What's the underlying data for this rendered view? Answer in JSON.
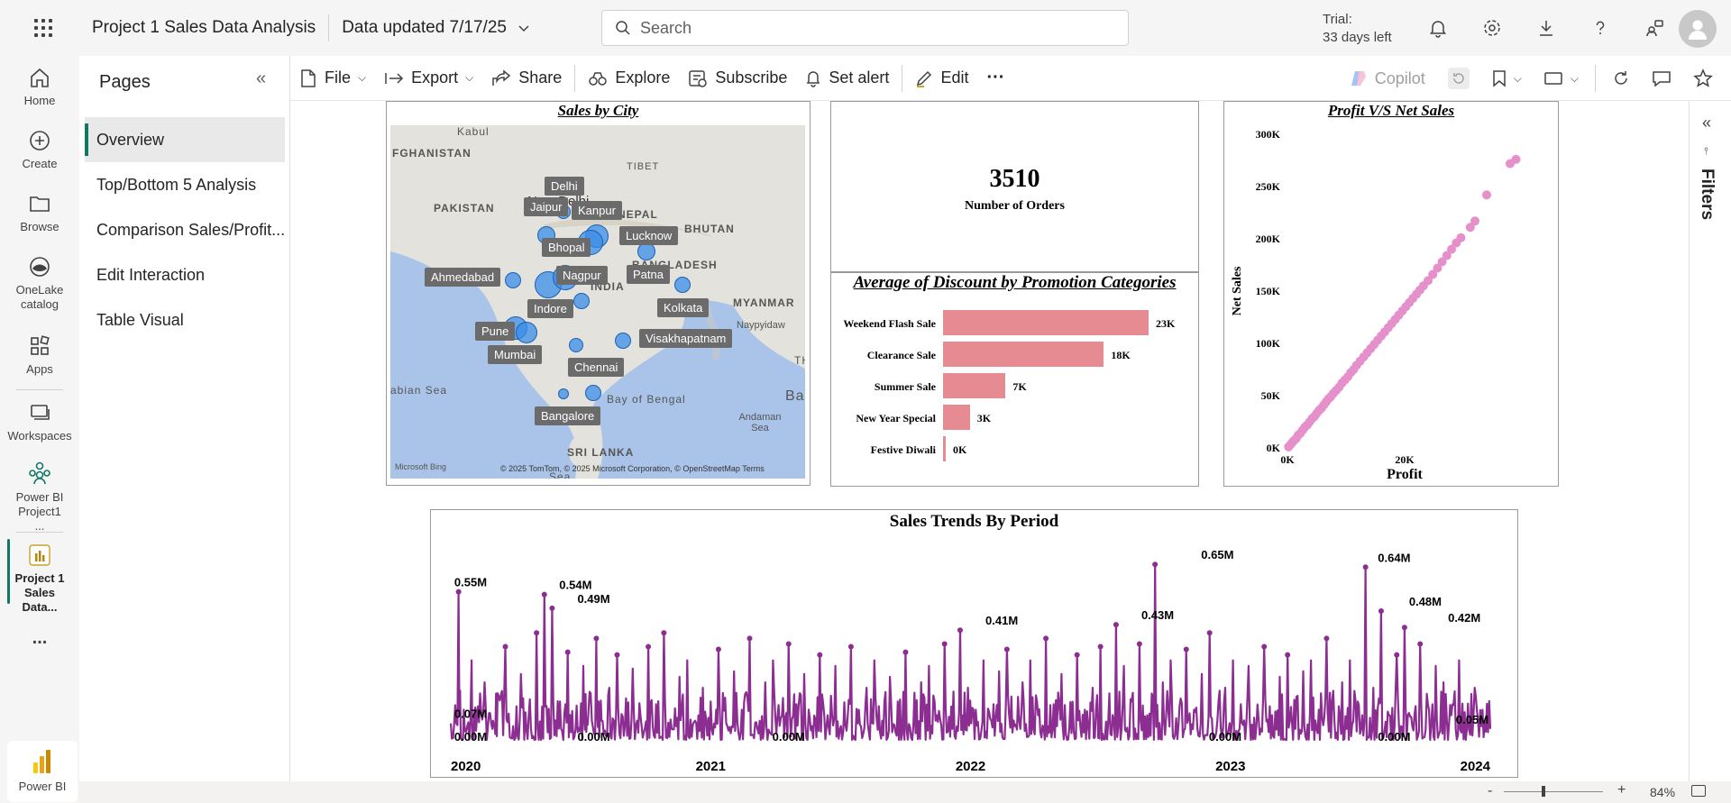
{
  "header": {
    "app_title": "Project 1 Sales Data Analysis",
    "data_updated": "Data updated 7/17/25",
    "search_placeholder": "Search",
    "trial_line1": "Trial:",
    "trial_line2": "33 days left"
  },
  "rail": {
    "items": [
      {
        "label": "Home",
        "icon": "home-icon"
      },
      {
        "label": "Create",
        "icon": "create-icon"
      },
      {
        "label": "Browse",
        "icon": "browse-icon"
      },
      {
        "label": "OneLake catalog",
        "icon": "onelake-icon"
      },
      {
        "label": "Apps",
        "icon": "apps-icon"
      },
      {
        "label": "Workspaces",
        "icon": "workspaces-icon"
      },
      {
        "label": "Power BI Project1 ...",
        "icon": "powerbi-workspace-icon"
      },
      {
        "label": "Project 1 Sales Data...",
        "icon": "report-icon"
      }
    ],
    "more": "...",
    "product": "Power BI"
  },
  "pages": {
    "title": "Pages",
    "items": [
      "Overview",
      "Top/Bottom 5 Analysis",
      "Comparison Sales/Profit...",
      "Edit Interaction",
      "Table Visual"
    ],
    "active_index": 0
  },
  "toolbar": {
    "file": "File",
    "export": "Export",
    "share": "Share",
    "explore": "Explore",
    "subscribe": "Subscribe",
    "set_alert": "Set alert",
    "edit": "Edit",
    "more": "···",
    "copilot": "Copilot"
  },
  "filters_label": "Filters",
  "zoom": "84%",
  "visuals": {
    "map": {
      "title": "Sales by City",
      "attribution": "© 2025 TomTom, © 2025 Microsoft Corporation, © OpenStreetMap  Terms",
      "bing": "Microsoft Bing",
      "geo_labels": [
        "Kabul",
        "FGHANISTAN",
        "PAKISTAN",
        "TIBET",
        "NEPAL",
        "BHUTAN",
        "BANGLADESH",
        "MYANMAR",
        "Naypyidaw",
        "abian Sea",
        "Bay of Bengal",
        "Andaman Sea",
        "SRI LANKA",
        "Bar",
        "TH",
        "New Delhi",
        "Sea",
        "INDIA"
      ],
      "cities": [
        "Delhi",
        "Jaipur",
        "Kanpur",
        "Lucknow",
        "Bhopal",
        "Patna",
        "Ahmedabad",
        "Nagpur",
        "Kolkata",
        "Indore",
        "Pune",
        "Mumbai",
        "Visakhapatnam",
        "Chennai",
        "Bangalore"
      ]
    },
    "kpi": {
      "value": "3510",
      "label": "Number of Orders"
    },
    "discount": {
      "title": "Average of Discount by Promotion Categories"
    },
    "scatter": {
      "title": "Profit V/S Net Sales"
    },
    "trend": {
      "title": "Sales Trends By Period"
    }
  },
  "chart_data": [
    {
      "type": "bar",
      "title": "Average of Discount by Promotion Categories",
      "categories": [
        "Weekend Flash Sale",
        "Clearance Sale",
        "Summer Sale",
        "New Year Special",
        "Festive Diwali"
      ],
      "values": [
        23,
        18,
        7,
        3,
        0
      ],
      "value_labels": [
        "23K",
        "18K",
        "7K",
        "3K",
        "0K"
      ],
      "orientation": "horizontal",
      "color": "#e68b92"
    },
    {
      "type": "scatter",
      "title": "Profit V/S Net Sales",
      "xlabel": "Profit",
      "ylabel": "Net Sales",
      "x_ticks": [
        "0K",
        "20K"
      ],
      "y_ticks": [
        "0K",
        "50K",
        "100K",
        "150K",
        "200K",
        "250K",
        "300K"
      ],
      "xlim": [
        0,
        40
      ],
      "ylim": [
        0,
        300
      ],
      "color": "#e58fcb",
      "points": [
        [
          0.2,
          1
        ],
        [
          0.5,
          3
        ],
        [
          0.8,
          5
        ],
        [
          1.1,
          7
        ],
        [
          1.5,
          9
        ],
        [
          1.8,
          12
        ],
        [
          2.2,
          14
        ],
        [
          2.6,
          17
        ],
        [
          3.0,
          20
        ],
        [
          3.4,
          22
        ],
        [
          3.8,
          25
        ],
        [
          4.2,
          28
        ],
        [
          4.6,
          30
        ],
        [
          5.0,
          33
        ],
        [
          5.4,
          36
        ],
        [
          5.8,
          38
        ],
        [
          6.2,
          41
        ],
        [
          6.6,
          44
        ],
        [
          7.0,
          47
        ],
        [
          7.4,
          49
        ],
        [
          7.8,
          52
        ],
        [
          8.3,
          55
        ],
        [
          8.8,
          58
        ],
        [
          9.3,
          62
        ],
        [
          9.8,
          65
        ],
        [
          10.3,
          68
        ],
        [
          10.8,
          72
        ],
        [
          11.3,
          75
        ],
        [
          11.8,
          79
        ],
        [
          12.4,
          83
        ],
        [
          13.0,
          87
        ],
        [
          13.6,
          91
        ],
        [
          14.2,
          95
        ],
        [
          14.8,
          99
        ],
        [
          15.4,
          103
        ],
        [
          16.0,
          107
        ],
        [
          16.6,
          111
        ],
        [
          17.2,
          115
        ],
        [
          17.8,
          119
        ],
        [
          18.4,
          123
        ],
        [
          19.0,
          127
        ],
        [
          19.6,
          131
        ],
        [
          20.2,
          135
        ],
        [
          20.8,
          139
        ],
        [
          21.4,
          143
        ],
        [
          22.0,
          147
        ],
        [
          22.6,
          151
        ],
        [
          23.2,
          155
        ],
        [
          24.0,
          160
        ],
        [
          24.8,
          166
        ],
        [
          25.6,
          172
        ],
        [
          26.4,
          178
        ],
        [
          27.2,
          184
        ],
        [
          28.0,
          190
        ],
        [
          28.8,
          196
        ],
        [
          29.6,
          201
        ],
        [
          31.2,
          211
        ],
        [
          32.0,
          217
        ],
        [
          34.0,
          242
        ],
        [
          38.0,
          272
        ],
        [
          39.0,
          276
        ]
      ]
    },
    {
      "type": "line",
      "title": "Sales Trends By Period",
      "x_ticks": [
        "2020",
        "2021",
        "2022",
        "2023",
        "2024"
      ],
      "xlim": [
        2020.0,
        2024.0
      ],
      "ylim": [
        0,
        0.7
      ],
      "unit": "M",
      "color": "#8b2d91",
      "x": [
        2020.0,
        2020.03,
        2020.05,
        2020.08,
        2020.1,
        2020.13,
        2020.16,
        2020.18,
        2020.21,
        2020.24,
        2020.27,
        2020.3,
        2020.33,
        2020.36,
        2020.39,
        2020.42,
        2020.45,
        2020.48,
        2020.51,
        2020.53,
        2020.56,
        2020.58,
        2020.61,
        2020.64,
        2020.67,
        2020.7,
        2020.73,
        2020.76,
        2020.79,
        2020.82,
        2020.85,
        2020.88,
        2020.91,
        2020.94,
        2020.97,
        2021.0,
        2021.03,
        2021.06,
        2021.09,
        2021.12,
        2021.15,
        2021.18,
        2021.21,
        2021.24,
        2021.27,
        2021.3,
        2021.33,
        2021.36,
        2021.39,
        2021.42,
        2021.45,
        2021.48,
        2021.51,
        2021.54,
        2021.57,
        2021.6,
        2021.63,
        2021.66,
        2021.69,
        2021.72,
        2021.75,
        2021.78,
        2021.81,
        2021.84,
        2021.87,
        2021.9,
        2021.93,
        2021.96,
        2021.99,
        2022.02,
        2022.05,
        2022.08,
        2022.11,
        2022.14,
        2022.17,
        2022.2,
        2022.23,
        2022.26,
        2022.29,
        2022.32,
        2022.35,
        2022.38,
        2022.41,
        2022.44,
        2022.47,
        2022.5,
        2022.53,
        2022.56,
        2022.59,
        2022.62,
        2022.65,
        2022.68,
        2022.71,
        2022.74,
        2022.77,
        2022.8,
        2022.83,
        2022.86,
        2022.89,
        2022.92,
        2022.95,
        2022.98,
        2023.01,
        2023.04,
        2023.07,
        2023.1,
        2023.13,
        2023.16,
        2023.19,
        2023.22,
        2023.25,
        2023.28,
        2023.31,
        2023.34,
        2023.37,
        2023.4,
        2023.43,
        2023.46,
        2023.49,
        2023.52,
        2023.55,
        2023.58,
        2023.61,
        2023.64,
        2023.67,
        2023.7,
        2023.73,
        2023.76,
        2023.79,
        2023.82,
        2023.85,
        2023.88,
        2023.91,
        2023.94,
        2023.97,
        2024.0
      ],
      "values": [
        0.07,
        0.55,
        0.12,
        0.3,
        0.08,
        0.22,
        0.05,
        0.18,
        0.35,
        0.06,
        0.25,
        0.1,
        0.4,
        0.54,
        0.49,
        0.15,
        0.33,
        0.05,
        0.28,
        0.12,
        0.38,
        0.08,
        0.2,
        0.32,
        0.06,
        0.27,
        0.1,
        0.35,
        0.14,
        0.4,
        0.05,
        0.24,
        0.3,
        0.08,
        0.2,
        0.15,
        0.34,
        0.07,
        0.26,
        0.12,
        0.38,
        0.05,
        0.22,
        0.3,
        0.09,
        0.36,
        0.14,
        0.25,
        0.06,
        0.32,
        0.1,
        0.28,
        0.04,
        0.35,
        0.12,
        0.2,
        0.3,
        0.08,
        0.24,
        0.15,
        0.33,
        0.06,
        0.22,
        0.28,
        0.1,
        0.36,
        0.05,
        0.41,
        0.2,
        0.12,
        0.3,
        0.08,
        0.26,
        0.34,
        0.06,
        0.22,
        0.3,
        0.1,
        0.38,
        0.14,
        0.25,
        0.05,
        0.32,
        0.12,
        0.2,
        0.35,
        0.08,
        0.43,
        0.28,
        0.15,
        0.36,
        0.1,
        0.65,
        0.22,
        0.3,
        0.06,
        0.34,
        0.12,
        0.25,
        0.4,
        0.08,
        0.2,
        0.3,
        0.14,
        0.28,
        0.06,
        0.35,
        0.1,
        0.24,
        0.32,
        0.05,
        0.26,
        0.3,
        0.12,
        0.38,
        0.08,
        0.22,
        0.3,
        0.15,
        0.64,
        0.2,
        0.48,
        0.1,
        0.32,
        0.42,
        0.06,
        0.36,
        0.14,
        0.28,
        0.22,
        0.1,
        0.3,
        0.05,
        0.2,
        0.12,
        0.05
      ],
      "data_labels": [
        {
          "x": 2020.0,
          "y": 0.55,
          "text": "0.55M"
        },
        {
          "x": 2020.48,
          "y": 0.54,
          "text": "0.54M"
        },
        {
          "x": 2020.55,
          "y": 0.49,
          "text": "0.49M"
        },
        {
          "x": 2022.12,
          "y": 0.41,
          "text": "0.41M"
        },
        {
          "x": 2022.72,
          "y": 0.43,
          "text": "0.43M"
        },
        {
          "x": 2022.95,
          "y": 0.65,
          "text": "0.65M"
        },
        {
          "x": 2023.63,
          "y": 0.64,
          "text": "0.64M"
        },
        {
          "x": 2023.75,
          "y": 0.48,
          "text": "0.48M"
        },
        {
          "x": 2023.9,
          "y": 0.42,
          "text": "0.42M"
        },
        {
          "x": 2020.0,
          "y": 0.07,
          "text": "0.07M"
        },
        {
          "x": 2020.05,
          "y": 0.0,
          "text": "0.00M"
        },
        {
          "x": 2020.55,
          "y": 0.0,
          "text": "0.00M"
        },
        {
          "x": 2021.3,
          "y": 0.0,
          "text": "0.00M"
        },
        {
          "x": 2022.98,
          "y": 0.0,
          "text": "0.00M"
        },
        {
          "x": 2023.63,
          "y": 0.0,
          "text": "0.00M"
        },
        {
          "x": 2023.97,
          "y": 0.05,
          "text": "0.05M"
        }
      ]
    }
  ]
}
